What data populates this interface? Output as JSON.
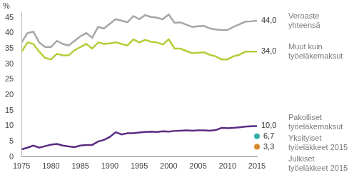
{
  "chart_data": {
    "type": "line",
    "y_label": "%",
    "legend": "right",
    "grid": false,
    "x": [
      1975,
      1976,
      1977,
      1978,
      1979,
      1980,
      1981,
      1982,
      1983,
      1984,
      1985,
      1986,
      1987,
      1988,
      1989,
      1990,
      1991,
      1992,
      1993,
      1994,
      1995,
      1996,
      1997,
      1998,
      1999,
      2000,
      2001,
      2002,
      2003,
      2004,
      2005,
      2006,
      2007,
      2008,
      2009,
      2010,
      2011,
      2012,
      2013,
      2014,
      2015
    ],
    "xlim": [
      1975,
      2015
    ],
    "xticks": [
      1975,
      1980,
      1985,
      1990,
      1995,
      2000,
      2005,
      2010,
      2015
    ],
    "ylim": [
      0,
      47
    ],
    "yticks": [
      0,
      5,
      10,
      15,
      20,
      25,
      30,
      35,
      40,
      45
    ],
    "series": [
      {
        "name": "Veroaste yhteensä",
        "color": "#a6a6a6",
        "values": [
          37,
          40,
          40.5,
          37,
          35.5,
          35.5,
          37.5,
          36.5,
          36,
          37.5,
          39,
          40,
          38.5,
          42,
          41.5,
          43,
          44.5,
          44,
          43.5,
          45.5,
          44.5,
          45.8,
          45.2,
          45,
          44.5,
          46,
          43.3,
          43.5,
          42.7,
          42,
          42.2,
          42.3,
          41.5,
          41.2,
          41,
          41,
          42,
          42.8,
          43.7,
          43.8,
          44.0
        ],
        "value_labels": [
          null,
          null,
          null,
          null,
          null,
          null,
          null,
          null,
          null,
          null,
          null,
          null,
          null,
          null,
          null,
          null,
          null,
          null,
          null,
          null,
          null,
          null,
          null,
          null,
          null,
          null,
          null,
          null,
          null,
          null,
          null,
          null,
          null,
          null,
          null,
          null,
          null,
          null,
          null,
          null,
          "44,0"
        ]
      },
      {
        "name": "Muut kuin työeläkemaksut",
        "color": "#b2cf3a",
        "values": [
          34,
          37,
          36.5,
          34,
          32,
          31.5,
          33.3,
          32.8,
          32.8,
          34.5,
          35.5,
          36.5,
          35,
          37,
          36.5,
          36.7,
          37,
          36.5,
          36,
          38,
          37,
          37.8,
          37.2,
          37,
          36.3,
          38,
          35,
          35,
          34.2,
          33.5,
          33.7,
          33.8,
          33,
          32.5,
          31.5,
          31.5,
          32.5,
          33,
          34,
          34,
          34.0
        ],
        "value_labels": [
          null,
          null,
          null,
          null,
          null,
          null,
          null,
          null,
          null,
          null,
          null,
          null,
          null,
          null,
          null,
          null,
          null,
          null,
          null,
          null,
          null,
          null,
          null,
          null,
          null,
          null,
          null,
          null,
          null,
          null,
          null,
          null,
          null,
          null,
          null,
          null,
          null,
          null,
          null,
          null,
          "34,0"
        ]
      },
      {
        "name": "Pakolliset työeläkemaksut",
        "color": "#5b2c83",
        "values": [
          2.5,
          3,
          3.7,
          3,
          3.5,
          4,
          4.2,
          3.7,
          3.4,
          3.2,
          3.7,
          3.9,
          3.9,
          5,
          5.5,
          6.5,
          8,
          7.3,
          7.7,
          7.7,
          7.9,
          8.1,
          8.2,
          8.1,
          8.3,
          8.2,
          8.4,
          8.5,
          8.6,
          8.5,
          8.6,
          8.6,
          8.5,
          8.7,
          9.4,
          9.3,
          9.4,
          9.6,
          9.8,
          9.9,
          10.0
        ],
        "value_labels": [
          null,
          null,
          null,
          null,
          null,
          null,
          null,
          null,
          null,
          null,
          null,
          null,
          null,
          null,
          null,
          null,
          null,
          null,
          null,
          null,
          null,
          null,
          null,
          null,
          null,
          null,
          null,
          null,
          null,
          null,
          null,
          null,
          null,
          null,
          null,
          null,
          null,
          null,
          null,
          null,
          "10,0"
        ]
      },
      {
        "name": "Yksityiset työeläkkeet 2015",
        "type": "scatter",
        "marker": "circle",
        "color": "#3aafa9",
        "x": [
          2015
        ],
        "values": [
          6.7
        ],
        "value_labels": [
          "6,7"
        ]
      },
      {
        "name": "Julkiset työeläkkeet 2015",
        "type": "scatter",
        "marker": "circle",
        "color": "#d9892b",
        "x": [
          2015
        ],
        "values": [
          3.3
        ],
        "value_labels": [
          "3,3"
        ]
      }
    ]
  }
}
